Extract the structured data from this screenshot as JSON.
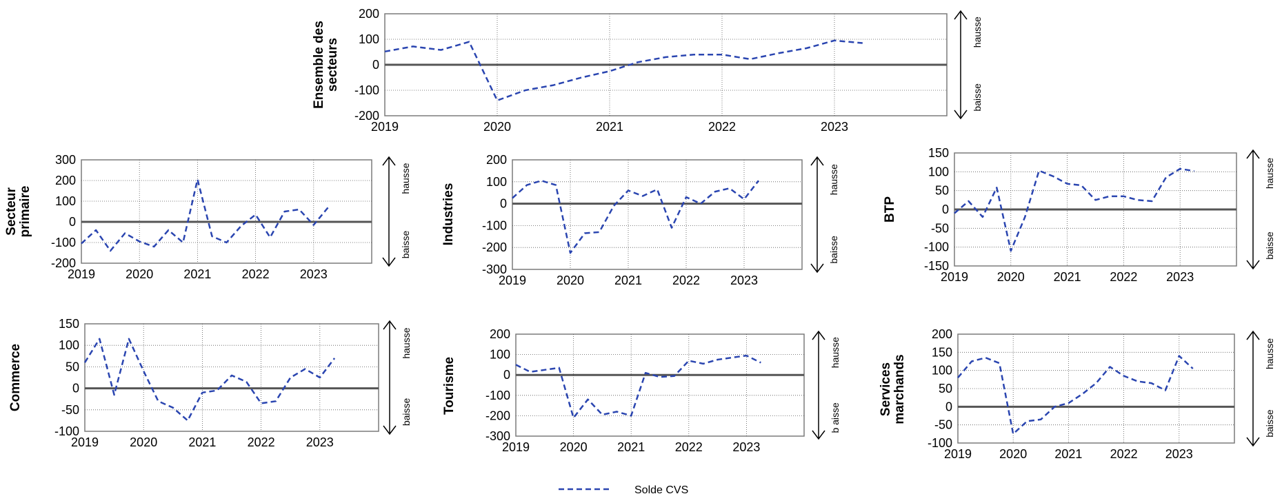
{
  "legend": {
    "label": "Solde CVS"
  },
  "colors": {
    "series": "#2a45b0",
    "zero": "#555555",
    "grid": "#555555",
    "frame": "#7a7a7a"
  },
  "chart_data": [
    {
      "type": "line",
      "ylabel": "Ensemble des secteurs",
      "ylim": [
        -200,
        200
      ],
      "yticks": [
        -200,
        -100,
        0,
        100,
        200
      ],
      "xticks": [
        "2019",
        "2020",
        "2021",
        "2022",
        "2023"
      ],
      "arrow_labels": [
        "hausse",
        "baisse"
      ],
      "series": [
        {
          "x": [
            2019.0,
            2019.25,
            2019.5,
            2019.75,
            2020.0,
            2020.25,
            2020.5,
            2020.75,
            2021.0,
            2021.25,
            2021.5,
            2021.75,
            2022.0,
            2022.25,
            2022.5,
            2022.75,
            2023.0,
            2023.25
          ],
          "values": [
            52,
            72,
            58,
            90,
            -140,
            -100,
            -80,
            -50,
            -25,
            10,
            30,
            40,
            40,
            22,
            45,
            65,
            95,
            85
          ]
        }
      ]
    },
    {
      "type": "line",
      "ylabel": "Secteur primaire",
      "ylim": [
        -200,
        300
      ],
      "yticks": [
        -200,
        -100,
        0,
        100,
        200,
        300
      ],
      "xticks": [
        "2019",
        "2020",
        "2021",
        "2022",
        "2023"
      ],
      "arrow_labels": [
        "hausse",
        "baisse"
      ],
      "series": [
        {
          "x": [
            2019.0,
            2019.25,
            2019.5,
            2019.75,
            2020.0,
            2020.25,
            2020.5,
            2020.75,
            2021.0,
            2021.25,
            2021.5,
            2021.75,
            2022.0,
            2022.25,
            2022.5,
            2022.75,
            2023.0,
            2023.25
          ],
          "values": [
            -105,
            -40,
            -140,
            -55,
            -95,
            -120,
            -40,
            -100,
            205,
            -70,
            -100,
            -20,
            35,
            -75,
            50,
            60,
            -15,
            70
          ]
        }
      ]
    },
    {
      "type": "line",
      "ylabel": "Industries",
      "ylim": [
        -300,
        200
      ],
      "yticks": [
        -300,
        -200,
        -100,
        0,
        100,
        200
      ],
      "xticks": [
        "2019",
        "2020",
        "2021",
        "2022",
        "2023"
      ],
      "arrow_labels": [
        "hausse",
        "baisse"
      ],
      "series": [
        {
          "x": [
            2019.0,
            2019.25,
            2019.5,
            2019.75,
            2020.0,
            2020.25,
            2020.5,
            2020.75,
            2021.0,
            2021.25,
            2021.5,
            2021.75,
            2022.0,
            2022.25,
            2022.5,
            2022.75,
            2023.0,
            2023.25
          ],
          "values": [
            25,
            85,
            105,
            85,
            -225,
            -135,
            -130,
            -10,
            60,
            35,
            65,
            -110,
            30,
            0,
            55,
            70,
            20,
            105
          ]
        }
      ]
    },
    {
      "type": "line",
      "ylabel": "BTP",
      "ylim": [
        -150,
        150
      ],
      "yticks": [
        -150,
        -100,
        -50,
        0,
        50,
        100,
        150
      ],
      "xticks": [
        "2019",
        "2020",
        "2021",
        "2022",
        "2023"
      ],
      "arrow_labels": [
        "hausse",
        "baisse"
      ],
      "series": [
        {
          "x": [
            2019.0,
            2019.25,
            2019.5,
            2019.75,
            2020.0,
            2020.25,
            2020.5,
            2020.75,
            2021.0,
            2021.25,
            2021.5,
            2021.75,
            2022.0,
            2022.25,
            2022.5,
            2022.75,
            2023.0,
            2023.25
          ],
          "values": [
            -10,
            22,
            -20,
            58,
            -110,
            -20,
            103,
            88,
            68,
            64,
            25,
            35,
            35,
            25,
            22,
            85,
            108,
            102
          ]
        }
      ]
    },
    {
      "type": "line",
      "ylabel": "Commerce",
      "ylim": [
        -100,
        150
      ],
      "yticks": [
        -100,
        -50,
        0,
        50,
        100,
        150
      ],
      "xticks": [
        "2019",
        "2020",
        "2021",
        "2022",
        "2023"
      ],
      "arrow_labels": [
        "hausse",
        "baisse"
      ],
      "series": [
        {
          "x": [
            2019.0,
            2019.25,
            2019.5,
            2019.75,
            2020.0,
            2020.25,
            2020.5,
            2020.75,
            2021.0,
            2021.25,
            2021.5,
            2021.75,
            2022.0,
            2022.25,
            2022.5,
            2022.75,
            2023.0,
            2023.25
          ],
          "values": [
            60,
            115,
            -15,
            115,
            40,
            -30,
            -45,
            -75,
            -10,
            -5,
            30,
            15,
            -35,
            -30,
            25,
            45,
            25,
            70
          ]
        }
      ]
    },
    {
      "type": "line",
      "ylabel": "Tourisme",
      "ylim": [
        -300,
        200
      ],
      "yticks": [
        -300,
        -200,
        -100,
        0,
        100,
        200
      ],
      "xticks": [
        "2019",
        "2020",
        "2021",
        "2022",
        "2023"
      ],
      "arrow_labels": [
        "hausse",
        "b aisse"
      ],
      "series": [
        {
          "x": [
            2019.0,
            2019.25,
            2019.5,
            2019.75,
            2020.0,
            2020.25,
            2020.5,
            2020.75,
            2021.0,
            2021.25,
            2021.5,
            2021.75,
            2022.0,
            2022.25,
            2022.5,
            2022.75,
            2023.0,
            2023.25
          ],
          "values": [
            50,
            15,
            25,
            35,
            -210,
            -120,
            -195,
            -180,
            -200,
            10,
            -10,
            -5,
            70,
            55,
            75,
            85,
            95,
            60
          ]
        }
      ]
    },
    {
      "type": "line",
      "ylabel": "Services marchands",
      "ylim": [
        -100,
        200
      ],
      "yticks": [
        -100,
        -50,
        0,
        50,
        100,
        150,
        200
      ],
      "xticks": [
        "2019",
        "2020",
        "2021",
        "2022",
        "2023"
      ],
      "arrow_labels": [
        "hausse",
        "baisse"
      ],
      "series": [
        {
          "x": [
            2019.0,
            2019.25,
            2019.5,
            2019.75,
            2020.0,
            2020.25,
            2020.5,
            2020.75,
            2021.0,
            2021.25,
            2021.5,
            2021.75,
            2022.0,
            2022.25,
            2022.5,
            2022.75,
            2023.0,
            2023.25
          ],
          "values": [
            80,
            125,
            135,
            120,
            -75,
            -40,
            -35,
            0,
            10,
            35,
            65,
            110,
            85,
            70,
            65,
            45,
            140,
            105
          ]
        }
      ]
    }
  ]
}
